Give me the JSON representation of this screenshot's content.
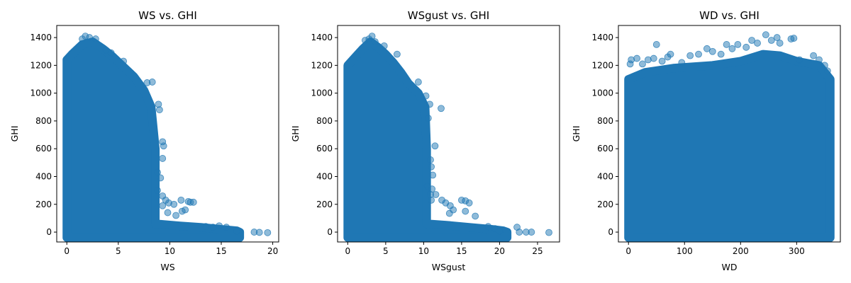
{
  "colors": {
    "marker": "#1f77b4",
    "marker_alpha": 0.5,
    "axes": "#000000"
  },
  "chart_data": [
    {
      "type": "scatter",
      "title": "WS vs. GHI",
      "xlabel": "WS",
      "ylabel": "GHI",
      "xlim": [
        -0.98,
        20.58
      ],
      "ylim": [
        -71,
        1487
      ],
      "xticks": [
        0,
        5,
        10,
        15,
        20
      ],
      "yticks": [
        0,
        200,
        400,
        600,
        800,
        1000,
        1200,
        1400
      ],
      "envelope": [
        [
          0,
          1240
        ],
        [
          0.5,
          1280
        ],
        [
          1.5,
          1350
        ],
        [
          2.5,
          1370
        ],
        [
          3.5,
          1320
        ],
        [
          4.5,
          1260
        ],
        [
          5.5,
          1190
        ],
        [
          6.5,
          1120
        ],
        [
          7.5,
          1020
        ],
        [
          8.2,
          900
        ],
        [
          8.6,
          600
        ],
        [
          8.6,
          300
        ],
        [
          8.6,
          60
        ],
        [
          11,
          45
        ],
        [
          13,
          35
        ],
        [
          15,
          20
        ],
        [
          16.5,
          10
        ],
        [
          16.8,
          0
        ]
      ],
      "points": [
        {
          "x": 1.5,
          "y": 1390
        },
        {
          "x": 1.8,
          "y": 1410
        },
        {
          "x": 2.2,
          "y": 1400
        },
        {
          "x": 2.8,
          "y": 1390
        },
        {
          "x": 3.8,
          "y": 1310
        },
        {
          "x": 4.3,
          "y": 1290
        },
        {
          "x": 5.5,
          "y": 1230
        },
        {
          "x": 7.8,
          "y": 1075
        },
        {
          "x": 8.3,
          "y": 1080
        },
        {
          "x": 8.9,
          "y": 920
        },
        {
          "x": 9.0,
          "y": 880
        },
        {
          "x": 9.3,
          "y": 650
        },
        {
          "x": 9.4,
          "y": 620
        },
        {
          "x": 9.3,
          "y": 530
        },
        {
          "x": 8.8,
          "y": 430
        },
        {
          "x": 9.1,
          "y": 390
        },
        {
          "x": 8.8,
          "y": 300
        },
        {
          "x": 9.3,
          "y": 260
        },
        {
          "x": 9.6,
          "y": 230
        },
        {
          "x": 9.3,
          "y": 190
        },
        {
          "x": 9.9,
          "y": 210
        },
        {
          "x": 10.4,
          "y": 200
        },
        {
          "x": 9.8,
          "y": 140
        },
        {
          "x": 10.6,
          "y": 120
        },
        {
          "x": 11.1,
          "y": 230
        },
        {
          "x": 11.2,
          "y": 150
        },
        {
          "x": 11.5,
          "y": 160
        },
        {
          "x": 11.8,
          "y": 220
        },
        {
          "x": 12.0,
          "y": 215
        },
        {
          "x": 12.3,
          "y": 215
        },
        {
          "x": 13.5,
          "y": 40
        },
        {
          "x": 14.2,
          "y": 35
        },
        {
          "x": 14.8,
          "y": 45
        },
        {
          "x": 15.5,
          "y": 35
        },
        {
          "x": 16.5,
          "y": 5
        },
        {
          "x": 18.2,
          "y": 0
        },
        {
          "x": 18.7,
          "y": -2
        },
        {
          "x": 19.5,
          "y": -4
        }
      ]
    },
    {
      "type": "scatter",
      "title": "WSgust vs. GHI",
      "xlabel": "WSgust",
      "ylabel": "GHI",
      "xlim": [
        -1.34,
        27.9
      ],
      "ylim": [
        -71,
        1487
      ],
      "xticks": [
        0,
        5,
        10,
        15,
        20,
        25
      ],
      "yticks": [
        0,
        200,
        400,
        600,
        800,
        1000,
        1200,
        1400
      ],
      "envelope": [
        [
          0,
          1200
        ],
        [
          1,
          1260
        ],
        [
          2,
          1320
        ],
        [
          3,
          1370
        ],
        [
          4,
          1330
        ],
        [
          5,
          1280
        ],
        [
          6,
          1220
        ],
        [
          7,
          1150
        ],
        [
          8,
          1070
        ],
        [
          9.3,
          1000
        ],
        [
          10.2,
          900
        ],
        [
          10.4,
          600
        ],
        [
          10.4,
          300
        ],
        [
          10.4,
          60
        ],
        [
          13,
          50
        ],
        [
          16,
          35
        ],
        [
          19,
          20
        ],
        [
          20.5,
          10
        ],
        [
          21,
          0
        ]
      ],
      "points": [
        {
          "x": 2.3,
          "y": 1380
        },
        {
          "x": 2.8,
          "y": 1390
        },
        {
          "x": 3.2,
          "y": 1410
        },
        {
          "x": 3.6,
          "y": 1370
        },
        {
          "x": 4.8,
          "y": 1340
        },
        {
          "x": 6.5,
          "y": 1280
        },
        {
          "x": 9.3,
          "y": 1080
        },
        {
          "x": 10.3,
          "y": 980
        },
        {
          "x": 10.8,
          "y": 920
        },
        {
          "x": 12.3,
          "y": 890
        },
        {
          "x": 10.6,
          "y": 820
        },
        {
          "x": 11.5,
          "y": 620
        },
        {
          "x": 10.9,
          "y": 520
        },
        {
          "x": 11.0,
          "y": 470
        },
        {
          "x": 11.2,
          "y": 410
        },
        {
          "x": 10.5,
          "y": 330
        },
        {
          "x": 11.1,
          "y": 310
        },
        {
          "x": 10.9,
          "y": 270
        },
        {
          "x": 11.6,
          "y": 270
        },
        {
          "x": 11.0,
          "y": 230
        },
        {
          "x": 12.4,
          "y": 230
        },
        {
          "x": 12.9,
          "y": 210
        },
        {
          "x": 13.5,
          "y": 190
        },
        {
          "x": 13.4,
          "y": 135
        },
        {
          "x": 13.9,
          "y": 160
        },
        {
          "x": 15.0,
          "y": 230
        },
        {
          "x": 15.5,
          "y": 225
        },
        {
          "x": 15.5,
          "y": 150
        },
        {
          "x": 16.0,
          "y": 210
        },
        {
          "x": 16.8,
          "y": 115
        },
        {
          "x": 18.5,
          "y": 40
        },
        {
          "x": 19.4,
          "y": 25
        },
        {
          "x": 20.0,
          "y": 5
        },
        {
          "x": 22.3,
          "y": 35
        },
        {
          "x": 22.6,
          "y": 0
        },
        {
          "x": 23.5,
          "y": 0
        },
        {
          "x": 24.2,
          "y": 0
        },
        {
          "x": 26.5,
          "y": -3
        }
      ]
    },
    {
      "type": "scatter",
      "title": "WD vs. GHI",
      "xlabel": "WD",
      "ylabel": "GHI",
      "xlim": [
        -18,
        378
      ],
      "ylim": [
        -71,
        1487
      ],
      "xticks": [
        0,
        100,
        200,
        300
      ],
      "yticks": [
        0,
        200,
        400,
        600,
        800,
        1000,
        1200,
        1400
      ],
      "envelope": [
        [
          0,
          1100
        ],
        [
          30,
          1150
        ],
        [
          80,
          1180
        ],
        [
          150,
          1200
        ],
        [
          200,
          1230
        ],
        [
          240,
          1280
        ],
        [
          270,
          1270
        ],
        [
          300,
          1230
        ],
        [
          340,
          1200
        ],
        [
          360,
          1100
        ],
        [
          360,
          0
        ]
      ],
      "points": [
        {
          "x": 3,
          "y": 1210
        },
        {
          "x": 5,
          "y": 1240
        },
        {
          "x": 15,
          "y": 1250
        },
        {
          "x": 25,
          "y": 1210
        },
        {
          "x": 35,
          "y": 1240
        },
        {
          "x": 45,
          "y": 1250
        },
        {
          "x": 50,
          "y": 1350
        },
        {
          "x": 60,
          "y": 1230
        },
        {
          "x": 70,
          "y": 1260
        },
        {
          "x": 75,
          "y": 1280
        },
        {
          "x": 95,
          "y": 1220
        },
        {
          "x": 110,
          "y": 1270
        },
        {
          "x": 125,
          "y": 1280
        },
        {
          "x": 140,
          "y": 1320
        },
        {
          "x": 150,
          "y": 1300
        },
        {
          "x": 165,
          "y": 1280
        },
        {
          "x": 175,
          "y": 1350
        },
        {
          "x": 185,
          "y": 1320
        },
        {
          "x": 195,
          "y": 1350
        },
        {
          "x": 210,
          "y": 1330
        },
        {
          "x": 220,
          "y": 1380
        },
        {
          "x": 230,
          "y": 1360
        },
        {
          "x": 245,
          "y": 1420
        },
        {
          "x": 255,
          "y": 1380
        },
        {
          "x": 265,
          "y": 1400
        },
        {
          "x": 270,
          "y": 1360
        },
        {
          "x": 290,
          "y": 1390
        },
        {
          "x": 295,
          "y": 1395
        },
        {
          "x": 305,
          "y": 1240
        },
        {
          "x": 330,
          "y": 1270
        },
        {
          "x": 340,
          "y": 1240
        },
        {
          "x": 350,
          "y": 1200
        },
        {
          "x": 355,
          "y": 1160
        }
      ]
    }
  ]
}
